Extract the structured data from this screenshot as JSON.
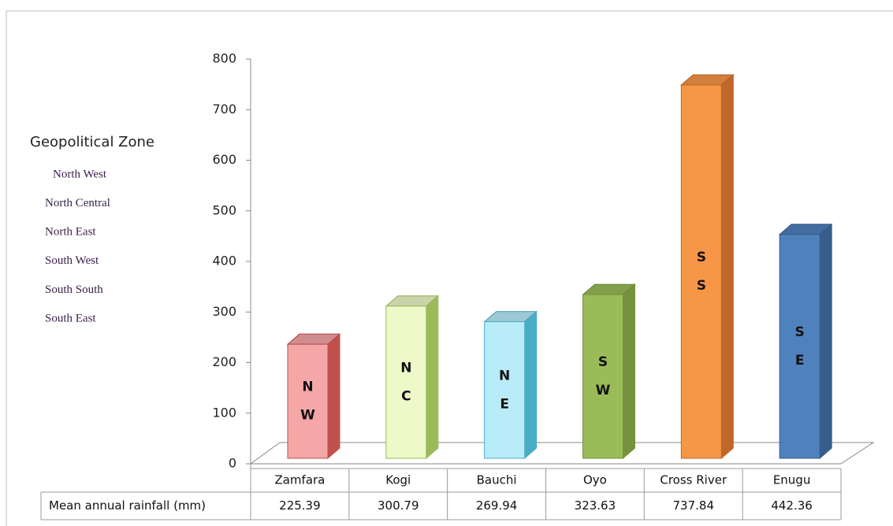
{
  "chart_data": {
    "type": "bar3d",
    "categories": [
      "Zamfara",
      "Kogi",
      "Bauchi",
      "Oyo",
      "Cross River",
      "Enugu"
    ],
    "values": [
      225.39,
      300.79,
      269.94,
      323.63,
      737.84,
      442.36
    ],
    "colors": [
      "#f5a6a6",
      "#eef8c8",
      "#b9ecf9",
      "#9bbb59",
      "#f79646",
      "#4f81bd"
    ],
    "edge_colors": [
      "#c0504d",
      "#9bbb59",
      "#4bacc6",
      "#76923c",
      "#c0672a",
      "#385d8a"
    ],
    "bar_labels": [
      [
        "N",
        "W"
      ],
      [
        "N",
        "C"
      ],
      [
        "N",
        "E"
      ],
      [
        "S",
        "W"
      ],
      [
        "S",
        "S"
      ],
      [
        "S",
        "E"
      ]
    ],
    "ylim": [
      0,
      800
    ],
    "yticks": [
      0,
      100,
      200,
      300,
      400,
      500,
      600,
      700,
      800
    ],
    "legend_title": "Geopolitical Zone",
    "legend_items": [
      "North West",
      "North Central",
      "North East",
      "South West",
      "South South",
      "South East"
    ],
    "table_row_label": "Mean annual rainfall (mm)"
  }
}
